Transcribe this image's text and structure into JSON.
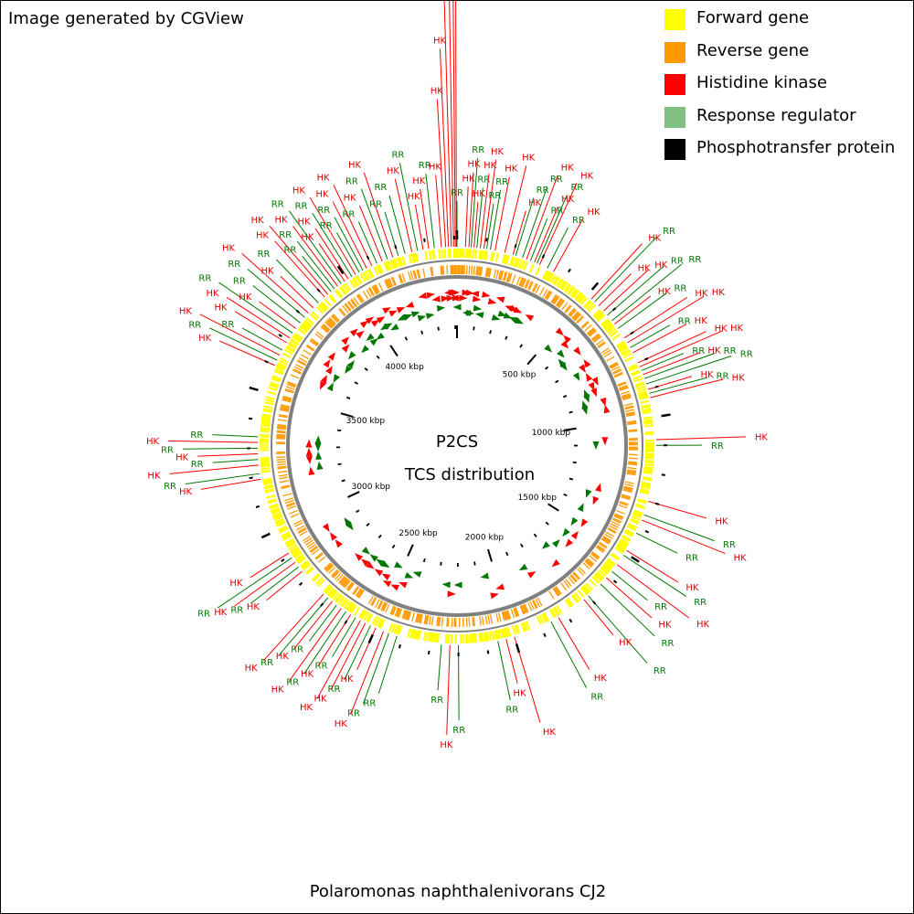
{
  "credit": "Image generated by CGView",
  "legend": [
    {
      "label": "Forward gene",
      "color": "#ffff00"
    },
    {
      "label": "Reverse gene",
      "color": "#ff9900"
    },
    {
      "label": "Histidine kinase",
      "color": "#ff0000"
    },
    {
      "label": "Response regulator",
      "color": "#80c080"
    },
    {
      "label": "Phosphotransfer protein",
      "color": "#000000"
    }
  ],
  "center": {
    "line1": "P2CS",
    "line2": "TCS distribution"
  },
  "organism": "Polaromonas naphthalenivorans CJ2",
  "ruler_labels": [
    "500 kbp",
    "1000 kbp",
    "1500 kbp",
    "2000 kbp",
    "2500 kbp",
    "3000 kbp",
    "3500 kbp",
    "4000 kbp"
  ],
  "genome_length_kbp": 4410,
  "colors": {
    "hk_text": "#e00000",
    "rr_text": "#007700",
    "hk_line": "#ff0000",
    "rr_line": "#007700",
    "backbone": "#808080",
    "tick": "#000000"
  },
  "features": [
    {
      "type": "RR",
      "pos_kbp": 0
    },
    {
      "type": "HK",
      "pos_kbp": 30
    },
    {
      "type": "HK",
      "pos_kbp": 42
    },
    {
      "type": "RR",
      "pos_kbp": 50
    },
    {
      "type": "HK",
      "pos_kbp": 60
    },
    {
      "type": "RR",
      "pos_kbp": 70
    },
    {
      "type": "HK",
      "pos_kbp": 82
    },
    {
      "type": "HK",
      "pos_kbp": 95
    },
    {
      "type": "RR",
      "pos_kbp": 105
    },
    {
      "type": "RR",
      "pos_kbp": 118
    },
    {
      "type": "HK",
      "pos_kbp": 135
    },
    {
      "type": "HK",
      "pos_kbp": 170
    },
    {
      "type": "HK",
      "pos_kbp": 200
    },
    {
      "type": "RR",
      "pos_kbp": 210
    },
    {
      "type": "RR",
      "pos_kbp": 235
    },
    {
      "type": "HK",
      "pos_kbp": 250
    },
    {
      "type": "RR",
      "pos_kbp": 265
    },
    {
      "type": "HK",
      "pos_kbp": 280
    },
    {
      "type": "RR",
      "pos_kbp": 290
    },
    {
      "type": "HK",
      "pos_kbp": 300
    },
    {
      "type": "RR",
      "pos_kbp": 330
    },
    {
      "type": "HK",
      "pos_kbp": 355
    },
    {
      "type": "HK",
      "pos_kbp": 520
    },
    {
      "type": "RR",
      "pos_kbp": 535
    },
    {
      "type": "HK",
      "pos_kbp": 555
    },
    {
      "type": "HK",
      "pos_kbp": 580
    },
    {
      "type": "RR",
      "pos_kbp": 600
    },
    {
      "type": "RR",
      "pos_kbp": 625
    },
    {
      "type": "HK",
      "pos_kbp": 640
    },
    {
      "type": "RR",
      "pos_kbp": 660
    },
    {
      "type": "HK",
      "pos_kbp": 700
    },
    {
      "type": "HK",
      "pos_kbp": 720
    },
    {
      "type": "RR",
      "pos_kbp": 740
    },
    {
      "type": "HK",
      "pos_kbp": 760
    },
    {
      "type": "HK",
      "pos_kbp": 800
    },
    {
      "type": "HK",
      "pos_kbp": 815
    },
    {
      "type": "RR",
      "pos_kbp": 830
    },
    {
      "type": "HK",
      "pos_kbp": 845
    },
    {
      "type": "RR",
      "pos_kbp": 860
    },
    {
      "type": "RR",
      "pos_kbp": 880
    },
    {
      "type": "HK",
      "pos_kbp": 900
    },
    {
      "type": "RR",
      "pos_kbp": 915
    },
    {
      "type": "HK",
      "pos_kbp": 930
    },
    {
      "type": "HK",
      "pos_kbp": 1080
    },
    {
      "type": "RR",
      "pos_kbp": 1100
    },
    {
      "type": "HK",
      "pos_kbp": 1300
    },
    {
      "type": "RR",
      "pos_kbp": 1350
    },
    {
      "type": "HK",
      "pos_kbp": 1370
    },
    {
      "type": "RR",
      "pos_kbp": 1420
    },
    {
      "type": "HK",
      "pos_kbp": 1490
    },
    {
      "type": "RR",
      "pos_kbp": 1510
    },
    {
      "type": "HK",
      "pos_kbp": 1550
    },
    {
      "type": "RR",
      "pos_kbp": 1580
    },
    {
      "type": "HK",
      "pos_kbp": 1610
    },
    {
      "type": "RR",
      "pos_kbp": 1640
    },
    {
      "type": "RR",
      "pos_kbp": 1700
    },
    {
      "type": "HK",
      "pos_kbp": 1720
    },
    {
      "type": "HK",
      "pos_kbp": 1830
    },
    {
      "type": "RR",
      "pos_kbp": 1860
    },
    {
      "type": "HK",
      "pos_kbp": 2000
    },
    {
      "type": "HK",
      "pos_kbp": 2030
    },
    {
      "type": "RR",
      "pos_kbp": 2060
    },
    {
      "type": "RR",
      "pos_kbp": 2200
    },
    {
      "type": "HK",
      "pos_kbp": 2230
    },
    {
      "type": "RR",
      "pos_kbp": 2260
    },
    {
      "type": "RR",
      "pos_kbp": 2420
    },
    {
      "type": "RR",
      "pos_kbp": 2450
    },
    {
      "type": "HK",
      "pos_kbp": 2470
    },
    {
      "type": "HK",
      "pos_kbp": 2500
    },
    {
      "type": "RR",
      "pos_kbp": 2520
    },
    {
      "type": "HK",
      "pos_kbp": 2540
    },
    {
      "type": "HK",
      "pos_kbp": 2560
    },
    {
      "type": "RR",
      "pos_kbp": 2580
    },
    {
      "type": "HK",
      "pos_kbp": 2600
    },
    {
      "type": "RR",
      "pos_kbp": 2620
    },
    {
      "type": "HK",
      "pos_kbp": 2640
    },
    {
      "type": "RR",
      "pos_kbp": 2660
    },
    {
      "type": "HK",
      "pos_kbp": 2680
    },
    {
      "type": "RR",
      "pos_kbp": 2700
    },
    {
      "type": "HK",
      "pos_kbp": 2720
    },
    {
      "type": "HK",
      "pos_kbp": 2830
    },
    {
      "type": "RR",
      "pos_kbp": 2850
    },
    {
      "type": "HK",
      "pos_kbp": 2870
    },
    {
      "type": "RR",
      "pos_kbp": 2890
    },
    {
      "type": "HK",
      "pos_kbp": 2910
    },
    {
      "type": "HK",
      "pos_kbp": 3190
    },
    {
      "type": "RR",
      "pos_kbp": 3210
    },
    {
      "type": "HK",
      "pos_kbp": 3240
    },
    {
      "type": "RR",
      "pos_kbp": 3260
    },
    {
      "type": "HK",
      "pos_kbp": 3280
    },
    {
      "type": "RR",
      "pos_kbp": 3300
    },
    {
      "type": "HK",
      "pos_kbp": 3320
    },
    {
      "type": "RR",
      "pos_kbp": 3340
    },
    {
      "type": "HK",
      "pos_kbp": 3600
    },
    {
      "type": "RR",
      "pos_kbp": 3620
    },
    {
      "type": "HK",
      "pos_kbp": 3640
    },
    {
      "type": "RR",
      "pos_kbp": 3660
    },
    {
      "type": "HK",
      "pos_kbp": 3690
    },
    {
      "type": "HK",
      "pos_kbp": 3710
    },
    {
      "type": "RR",
      "pos_kbp": 3730
    },
    {
      "type": "HK",
      "pos_kbp": 3750
    },
    {
      "type": "RR",
      "pos_kbp": 3775
    },
    {
      "type": "RR",
      "pos_kbp": 3800
    },
    {
      "type": "HK",
      "pos_kbp": 3820
    },
    {
      "type": "HK",
      "pos_kbp": 3845
    },
    {
      "type": "RR",
      "pos_kbp": 3870
    },
    {
      "type": "HK",
      "pos_kbp": 3900
    },
    {
      "type": "HK",
      "pos_kbp": 3915
    },
    {
      "type": "RR",
      "pos_kbp": 3930
    },
    {
      "type": "RR",
      "pos_kbp": 3945
    },
    {
      "type": "HK",
      "pos_kbp": 3960
    },
    {
      "type": "RR",
      "pos_kbp": 3975
    },
    {
      "type": "HK",
      "pos_kbp": 3990
    },
    {
      "type": "HK",
      "pos_kbp": 4005
    },
    {
      "type": "RR",
      "pos_kbp": 4020
    },
    {
      "type": "HK",
      "pos_kbp": 4035
    },
    {
      "type": "RR",
      "pos_kbp": 4050
    },
    {
      "type": "RR",
      "pos_kbp": 4065
    },
    {
      "type": "HK",
      "pos_kbp": 4080
    },
    {
      "type": "HK",
      "pos_kbp": 4100
    },
    {
      "type": "RR",
      "pos_kbp": 4120
    },
    {
      "type": "HK",
      "pos_kbp": 4140
    },
    {
      "type": "RR",
      "pos_kbp": 4160
    },
    {
      "type": "HK",
      "pos_kbp": 4180
    },
    {
      "type": "RR",
      "pos_kbp": 4200
    },
    {
      "type": "RR",
      "pos_kbp": 4225
    },
    {
      "type": "HK",
      "pos_kbp": 4250
    },
    {
      "type": "RR",
      "pos_kbp": 4270
    },
    {
      "type": "HK",
      "pos_kbp": 4290
    },
    {
      "type": "HK",
      "pos_kbp": 4310
    },
    {
      "type": "RR",
      "pos_kbp": 4330
    },
    {
      "type": "HK",
      "pos_kbp": 4355
    },
    {
      "type": "HK",
      "pos_kbp": 4370
    },
    {
      "type": "HK",
      "pos_kbp": 4380
    },
    {
      "type": "HK",
      "pos_kbp": 4390
    },
    {
      "type": "HK",
      "pos_kbp": 4398
    },
    {
      "type": "HK",
      "pos_kbp": 4404
    },
    {
      "type": "HK",
      "pos_kbp": 4408
    }
  ]
}
